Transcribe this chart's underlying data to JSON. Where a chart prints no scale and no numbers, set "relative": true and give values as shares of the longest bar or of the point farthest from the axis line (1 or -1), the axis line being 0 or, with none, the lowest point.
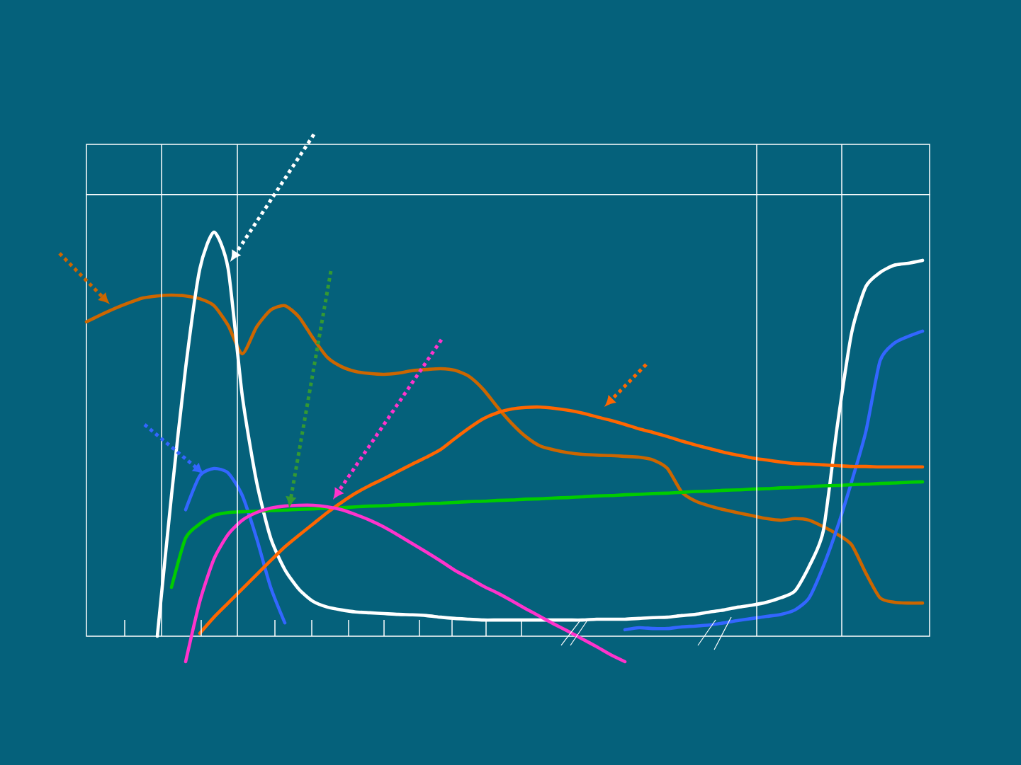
{
  "chart_data": {
    "type": "line",
    "relative": true,
    "line_style": "solid",
    "categories": [
      null,
      null,
      null,
      null,
      null,
      null,
      null,
      null,
      null,
      null,
      null,
      null,
      null,
      null,
      null,
      null,
      null,
      null,
      null,
      null,
      null,
      null,
      null,
      null,
      null,
      null,
      null,
      null,
      null,
      null,
      null,
      null,
      null,
      null,
      null,
      null,
      null,
      null,
      null,
      null,
      null,
      null,
      null,
      null,
      null,
      null,
      null,
      null,
      null,
      null,
      null,
      null,
      null,
      null,
      null,
      null,
      null,
      null,
      null,
      null
    ],
    "series": [
      {
        "color": "#cc6600",
        "values": [
          0.778,
          0.795,
          0.811,
          0.825,
          0.837,
          0.842,
          0.844,
          0.842,
          0.835,
          0.818,
          0.769,
          0.699,
          0.765,
          0.807,
          0.818,
          0.79,
          0.737,
          0.69,
          0.667,
          0.655,
          0.65,
          0.648,
          0.651,
          0.657,
          0.66,
          0.662,
          0.658,
          0.643,
          0.611,
          0.567,
          0.527,
          0.494,
          0.471,
          0.461,
          0.454,
          0.45,
          0.448,
          0.447,
          0.445,
          0.443,
          0.436,
          0.415,
          0.357,
          0.334,
          0.322,
          0.313,
          0.305,
          0.298,
          0.291,
          0.287,
          0.291,
          0.287,
          0.271,
          0.252,
          0.226,
          0.156,
          0.095,
          0.084,
          0.082,
          0.082
        ]
      },
      {
        "color": "#ffffff",
        "values": [
          null,
          null,
          null,
          null,
          null,
          0,
          0.348,
          0.664,
          0.909,
          1.0,
          0.909,
          0.594,
          0.383,
          0.243,
          0.165,
          0.116,
          0.086,
          0.072,
          0.065,
          0.06,
          0.058,
          0.056,
          0.054,
          0.053,
          0.051,
          0.047,
          0.044,
          0.042,
          0.04,
          0.04,
          0.04,
          0.04,
          0.04,
          0.04,
          0.04,
          0.04,
          0.042,
          0.042,
          0.042,
          0.044,
          0.046,
          0.047,
          0.051,
          0.054,
          0.06,
          0.065,
          0.072,
          0.077,
          0.084,
          0.095,
          0.112,
          0.173,
          0.261,
          0.524,
          0.751,
          0.865,
          0.9,
          0.918,
          0.923,
          0.93
        ]
      },
      {
        "color": "#3366ff",
        "values": [
          null,
          null,
          null,
          null,
          null,
          null,
          null,
          0.313,
          0.397,
          0.415,
          0.404,
          0.348,
          0.243,
          0.121,
          0.033,
          null,
          null,
          null,
          null,
          null,
          null,
          null,
          null,
          null,
          null,
          null,
          null,
          null,
          null,
          null,
          null,
          null,
          null,
          null,
          null,
          null,
          null,
          null,
          0.016,
          0.021,
          0.019,
          0.019,
          0.023,
          0.025,
          0.028,
          0.033,
          0.039,
          0.044,
          0.049,
          0.054,
          0.065,
          0.095,
          0.173,
          0.27,
          0.383,
          0.506,
          0.681,
          0.725,
          0.742,
          0.755
        ]
      },
      {
        "color": "#00cc00",
        "values": [
          null,
          null,
          null,
          null,
          null,
          null,
          0.121,
          0.243,
          0.278,
          0.299,
          0.306,
          0.308,
          0.309,
          0.311,
          0.312,
          0.314,
          0.315,
          0.317,
          0.318,
          0.32,
          0.322,
          0.323,
          0.325,
          0.326,
          0.328,
          0.329,
          0.331,
          0.333,
          0.334,
          0.336,
          0.337,
          0.339,
          0.34,
          0.342,
          0.343,
          0.345,
          0.347,
          0.348,
          0.35,
          0.351,
          0.353,
          0.354,
          0.356,
          0.358,
          0.359,
          0.361,
          0.362,
          0.364,
          0.365,
          0.367,
          0.368,
          0.37,
          0.372,
          0.373,
          0.375,
          0.376,
          0.378,
          0.379,
          0.381,
          0.382
        ]
      },
      {
        "color": "#ff6600",
        "values": [
          null,
          null,
          null,
          null,
          null,
          null,
          null,
          null,
          0.007,
          0.047,
          0.082,
          0.117,
          0.152,
          0.187,
          0.221,
          0.25,
          0.278,
          0.306,
          0.331,
          0.354,
          0.373,
          0.39,
          0.408,
          0.426,
          0.443,
          0.462,
          0.489,
          0.515,
          0.538,
          0.553,
          0.562,
          0.566,
          0.567,
          0.564,
          0.559,
          0.552,
          0.543,
          0.534,
          0.524,
          0.513,
          0.504,
          0.494,
          0.483,
          0.473,
          0.464,
          0.455,
          0.448,
          0.441,
          0.436,
          0.431,
          0.427,
          0.426,
          0.424,
          0.422,
          0.42,
          0.42,
          0.419,
          0.419,
          0.419,
          0.419
        ]
      },
      {
        "color": "#ff33cc",
        "values": [
          null,
          null,
          null,
          null,
          null,
          null,
          null,
          -0.063,
          0.086,
          0.191,
          0.252,
          0.287,
          0.306,
          0.317,
          0.322,
          0.324,
          0.324,
          0.32,
          0.313,
          0.301,
          0.287,
          0.27,
          0.25,
          0.229,
          0.208,
          0.186,
          0.163,
          0.144,
          0.124,
          0.107,
          0.088,
          0.068,
          0.049,
          0.03,
          0.012,
          -0.007,
          -0.026,
          -0.046,
          -0.063,
          null,
          null,
          null,
          null,
          null,
          null,
          null,
          null,
          null,
          null,
          null,
          null,
          null,
          null,
          null,
          null,
          null,
          null,
          null,
          null,
          null
        ]
      }
    ]
  }
}
